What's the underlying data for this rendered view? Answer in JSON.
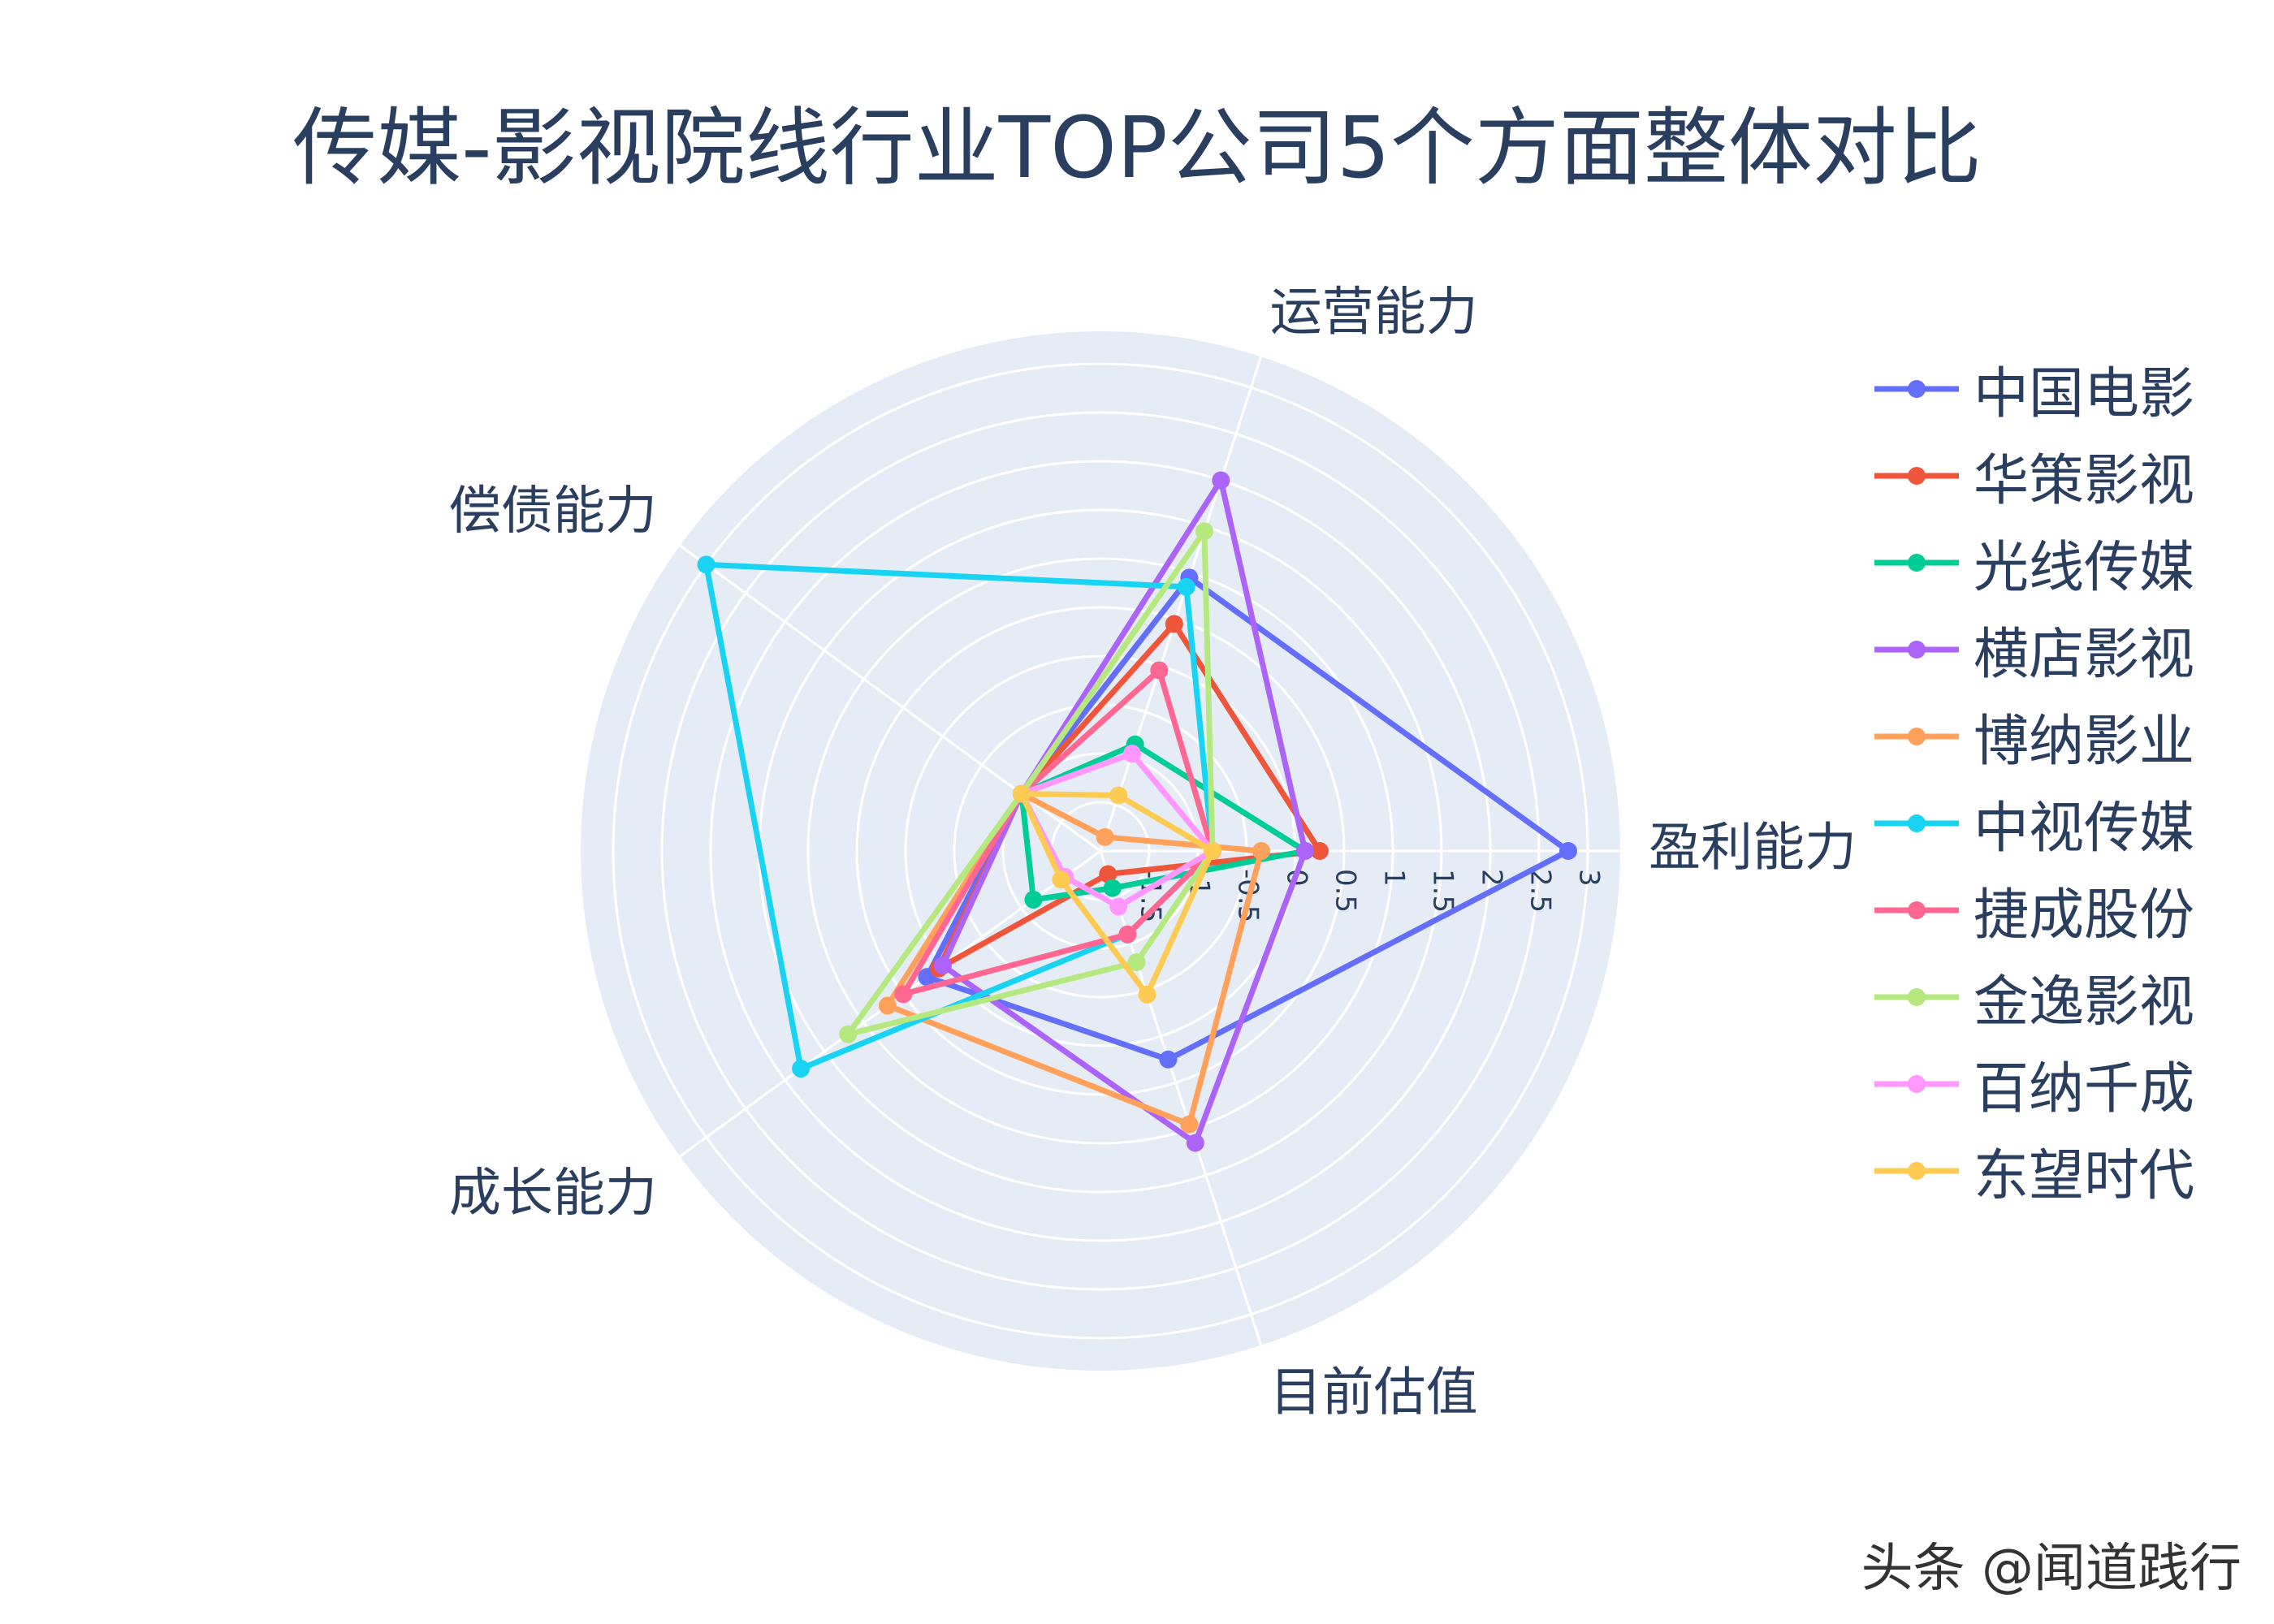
{
  "chart_data": {
    "type": "radar",
    "title": "传媒-影视院线行业TOP公司5个方面整体对比",
    "axes": [
      "盈利能力",
      "运营能力",
      "偿债能力",
      "成长能力",
      "目前估值"
    ],
    "radial_range": [
      -2,
      3
    ],
    "radial_tick_labels": [
      "-1.5",
      "-1",
      "-0.5",
      "0",
      "0.5",
      "1",
      "1.5",
      "2",
      "2.5",
      "3"
    ],
    "radial_ticks": [
      -1.5,
      -1,
      -0.5,
      0,
      0.5,
      1,
      1.5,
      2,
      2.5,
      3
    ],
    "angular_rotation_deg": 0,
    "angular_direction": "counterclockwise",
    "gridlines": true,
    "legend_position": "right",
    "series": [
      {
        "name": "中国电影",
        "color": "#636efa",
        "values": [
          2.8,
          0.95,
          -1.0,
          0.2,
          0.25
        ]
      },
      {
        "name": "华策影视",
        "color": "#EF553B",
        "values": [
          0.25,
          0.45,
          -1.0,
          0.05,
          -1.75
        ]
      },
      {
        "name": "光线传媒",
        "color": "#00cc96",
        "values": [
          0.1,
          -0.85,
          -1.0,
          -1.15,
          -1.6
        ]
      },
      {
        "name": "横店影视",
        "color": "#ab63fa",
        "values": [
          0.1,
          2.0,
          -1.0,
          0.0,
          1.15
        ]
      },
      {
        "name": "博纳影业",
        "color": "#FFA15A",
        "values": [
          -0.35,
          -1.85,
          -1.0,
          0.7,
          0.95
        ]
      },
      {
        "name": "中视传媒",
        "color": "#19d3f3",
        "values": [
          -0.85,
          0.85,
          3.0,
          1.8,
          -1.1
        ]
      },
      {
        "name": "捷成股份",
        "color": "#FF6692",
        "values": [
          -0.85,
          -0.05,
          -1.0,
          0.5,
          -1.1
        ]
      },
      {
        "name": "金逸影视",
        "color": "#B6E880",
        "values": [
          -0.85,
          1.45,
          -1.0,
          1.2,
          -0.8
        ]
      },
      {
        "name": "百纳千成",
        "color": "#FF97FF",
        "values": [
          -0.85,
          -0.95,
          -1.0,
          -1.55,
          -1.4
        ]
      },
      {
        "name": "东望时代",
        "color": "#FECB52",
        "values": [
          -0.85,
          -1.4,
          -1.0,
          -1.5,
          -0.45
        ]
      }
    ]
  },
  "watermark": "头条 @闻道践行"
}
